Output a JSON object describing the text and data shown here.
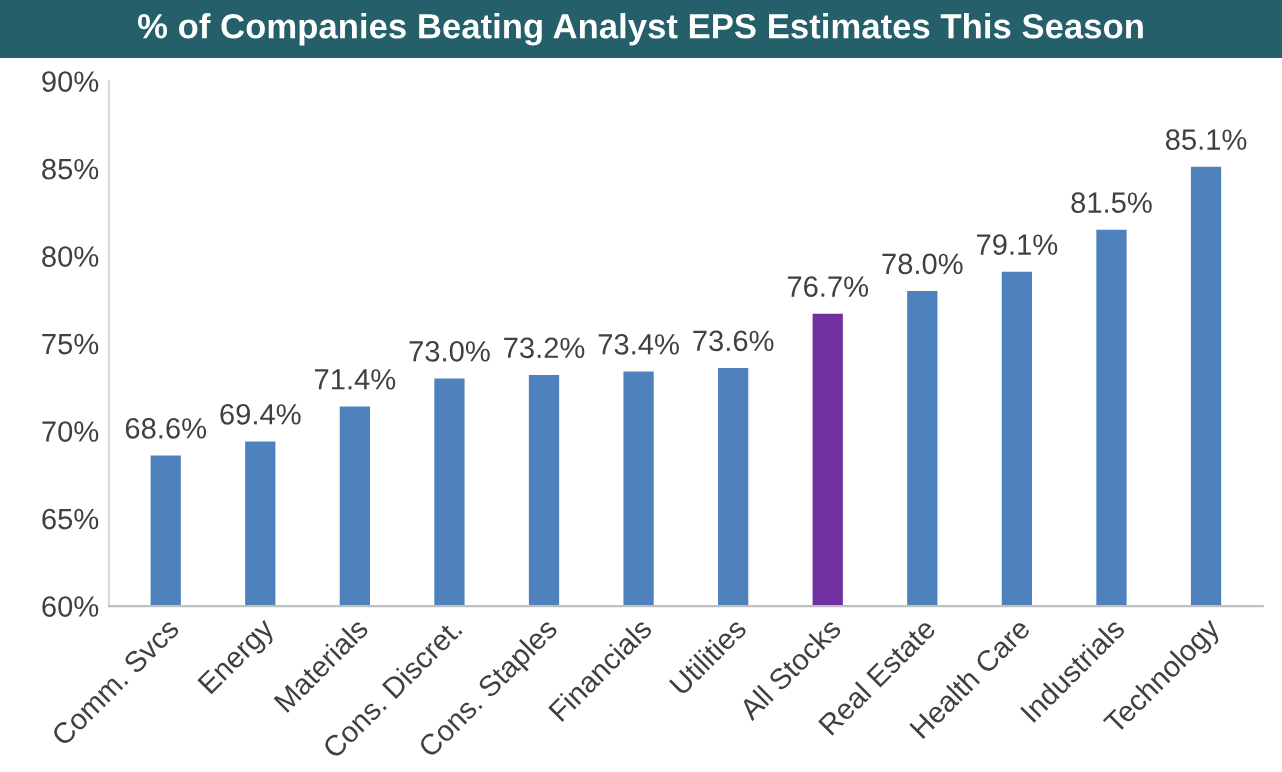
{
  "chart_data": {
    "type": "bar",
    "title": "% of Companies Beating Analyst EPS Estimates This Season",
    "categories": [
      "Comm. Svcs",
      "Energy",
      "Materials",
      "Cons. Discret.",
      "Cons. Staples",
      "Financials",
      "Utilities",
      "All Stocks",
      "Real Estate",
      "Health Care",
      "Industrials",
      "Technology"
    ],
    "values": [
      68.6,
      69.4,
      71.4,
      73.0,
      73.2,
      73.4,
      73.6,
      76.7,
      78.0,
      79.1,
      81.5,
      85.1
    ],
    "colors": [
      "#4f81bd",
      "#4f81bd",
      "#4f81bd",
      "#4f81bd",
      "#4f81bd",
      "#4f81bd",
      "#4f81bd",
      "#7030a0",
      "#4f81bd",
      "#4f81bd",
      "#4f81bd",
      "#4f81bd"
    ],
    "value_labels": [
      "68.6%",
      "69.4%",
      "71.4%",
      "73.0%",
      "73.2%",
      "73.4%",
      "73.6%",
      "76.7%",
      "78.0%",
      "79.1%",
      "81.5%",
      "85.1%"
    ],
    "ylim": [
      60,
      90
    ],
    "yticks": [
      {
        "value": 60,
        "label": "60%"
      },
      {
        "value": 65,
        "label": "65%"
      },
      {
        "value": 70,
        "label": "70%"
      },
      {
        "value": 75,
        "label": "75%"
      },
      {
        "value": 80,
        "label": "80%"
      },
      {
        "value": 85,
        "label": "85%"
      },
      {
        "value": 90,
        "label": "90%"
      }
    ],
    "grid": false
  }
}
